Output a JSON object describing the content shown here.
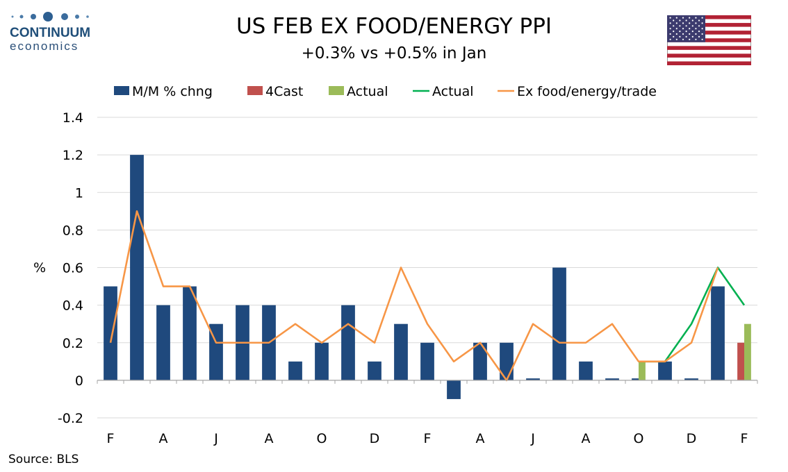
{
  "header": {
    "logo_line1": "CONTINUUM",
    "logo_line2": "economics",
    "title": "US FEB EX FOOD/ENERGY PPI",
    "subtitle": "+0.3% vs +0.5% in Jan",
    "flag_icon": "us-flag-icon"
  },
  "footer": {
    "source": "Source: BLS"
  },
  "colors": {
    "mm_bar": "#1f497d",
    "forecast_bar": "#c0504d",
    "actual_bar": "#9bbb59",
    "actual_line": "#00b050",
    "ex_trade_line": "#f79646",
    "grid": "#d9d9d9"
  },
  "chart_data": {
    "type": "bar",
    "title": "US FEB EX FOOD/ENERGY PPI",
    "subtitle": "+0.3% vs +0.5% in Jan",
    "ylabel": "%",
    "xlabel": "",
    "ylim": [
      -0.2,
      1.4
    ],
    "yticks": [
      "1.4",
      "1.2",
      "1",
      "0.8",
      "0.6",
      "0.4",
      "0.2",
      "0",
      "-0.2"
    ],
    "ytick_values": [
      1.4,
      1.2,
      1.0,
      0.8,
      0.6,
      0.4,
      0.2,
      0.0,
      -0.2
    ],
    "xtick_labels": [
      "F",
      "A",
      "J",
      "A",
      "O",
      "D",
      "F",
      "A",
      "J",
      "A",
      "O",
      "D",
      "F"
    ],
    "grid": true,
    "legend_position": "top",
    "legend": [
      "M/M % chng",
      "4Cast",
      "Actual",
      "Actual",
      "Ex food/energy/trade"
    ],
    "n_periods": 25,
    "series": [
      {
        "name": "M/M % chng",
        "kind": "bar",
        "values": [
          0.5,
          1.2,
          0.4,
          0.5,
          0.3,
          0.4,
          0.4,
          0.1,
          0.2,
          0.4,
          0.1,
          0.3,
          0.2,
          -0.1,
          0.2,
          0.2,
          0.01,
          0.6,
          0.1,
          0.01,
          0.01,
          0.1,
          0.01,
          0.5,
          null
        ]
      },
      {
        "name": "4Cast",
        "kind": "bar",
        "values": [
          null,
          null,
          null,
          null,
          null,
          null,
          null,
          null,
          null,
          null,
          null,
          null,
          null,
          null,
          null,
          null,
          null,
          null,
          null,
          null,
          null,
          null,
          null,
          null,
          0.2
        ]
      },
      {
        "name": "Actual",
        "kind": "bar",
        "values": [
          null,
          null,
          null,
          null,
          null,
          null,
          null,
          null,
          null,
          null,
          null,
          null,
          null,
          null,
          null,
          null,
          null,
          null,
          null,
          null,
          0.1,
          null,
          null,
          null,
          0.3
        ]
      },
      {
        "name": "Actual",
        "kind": "line",
        "values": [
          null,
          null,
          null,
          null,
          null,
          null,
          null,
          null,
          null,
          null,
          null,
          null,
          null,
          null,
          null,
          null,
          null,
          null,
          null,
          null,
          0.1,
          0.1,
          0.3,
          0.6,
          0.4
        ]
      },
      {
        "name": "Ex food/energy/trade",
        "kind": "line",
        "values": [
          0.2,
          0.9,
          0.5,
          0.5,
          0.2,
          0.2,
          0.2,
          0.3,
          0.2,
          0.3,
          0.2,
          0.6,
          0.3,
          0.1,
          0.2,
          0.0,
          0.3,
          0.2,
          0.2,
          0.3,
          0.1,
          0.1,
          0.2,
          0.6,
          null
        ]
      }
    ]
  }
}
